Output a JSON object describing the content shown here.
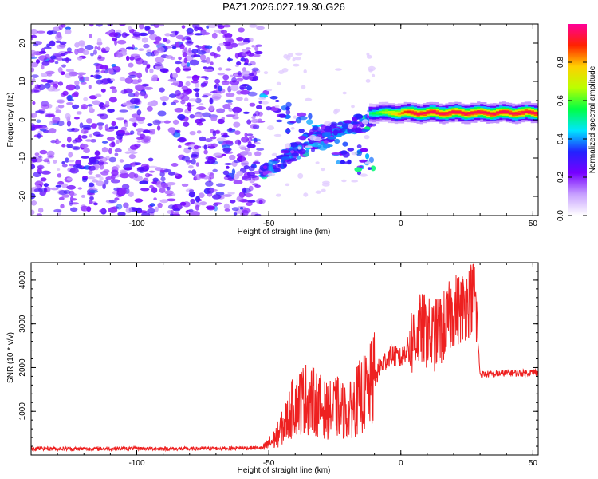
{
  "title": "PAZ1.2026.027.19.30.G26",
  "chart_data": [
    {
      "type": "heatmap",
      "panel": "spectrogram",
      "xlabel": "Height of straight line (km)",
      "ylabel": "Frequency (Hz)",
      "xlim": [
        -140,
        52
      ],
      "ylim": [
        -25,
        25
      ],
      "xticks": [
        -100,
        -50,
        0,
        50
      ],
      "yticks": [
        -20,
        -10,
        0,
        10,
        20
      ],
      "colorbar": {
        "label": "Normalized spectral amplitude",
        "range": [
          0,
          1
        ],
        "ticks": [
          0.0,
          0.2,
          0.4,
          0.6,
          0.8
        ],
        "stops": [
          "#ffffff",
          "#c7a0ff",
          "#7700ff",
          "#2222ff",
          "#00e5ff",
          "#00ff44",
          "#bbff00",
          "#ffd000",
          "#ff2200",
          "#ff0099"
        ]
      },
      "features": {
        "noise_region_x": [
          -140,
          -53
        ],
        "noise_amplitude": [
          0.1,
          0.3
        ],
        "transition_x": [
          -53,
          -10
        ],
        "signal_line": {
          "x": [
            -12,
            52
          ],
          "frequency": 1.8,
          "amplitude": 0.95
        }
      }
    },
    {
      "type": "line",
      "panel": "snr",
      "xlabel": "Height of straight line (km)",
      "ylabel": "SNR (10 * v/v)",
      "xlim": [
        -140,
        52
      ],
      "ylim": [
        0,
        4400
      ],
      "xticks": [
        -100,
        -50,
        0,
        50
      ],
      "yticks": [
        1000,
        2000,
        3000,
        4000
      ],
      "color": "#ee2020",
      "series": [
        {
          "name": "SNR",
          "x": [
            -140,
            -120,
            -100,
            -80,
            -60,
            -52,
            -48,
            -44,
            -40,
            -36,
            -32,
            -28,
            -24,
            -20,
            -16,
            -12,
            -8,
            -4,
            0,
            4,
            8,
            12,
            16,
            20,
            24,
            28,
            30,
            35,
            40,
            45,
            52
          ],
          "y": [
            150,
            140,
            150,
            140,
            160,
            160,
            350,
            700,
            1200,
            1300,
            1200,
            1000,
            1100,
            950,
            1300,
            1500,
            2000,
            2300,
            2200,
            2600,
            2900,
            2700,
            2900,
            3300,
            3400,
            3700,
            1850,
            1850,
            1880,
            1870,
            1900
          ]
        }
      ]
    }
  ]
}
